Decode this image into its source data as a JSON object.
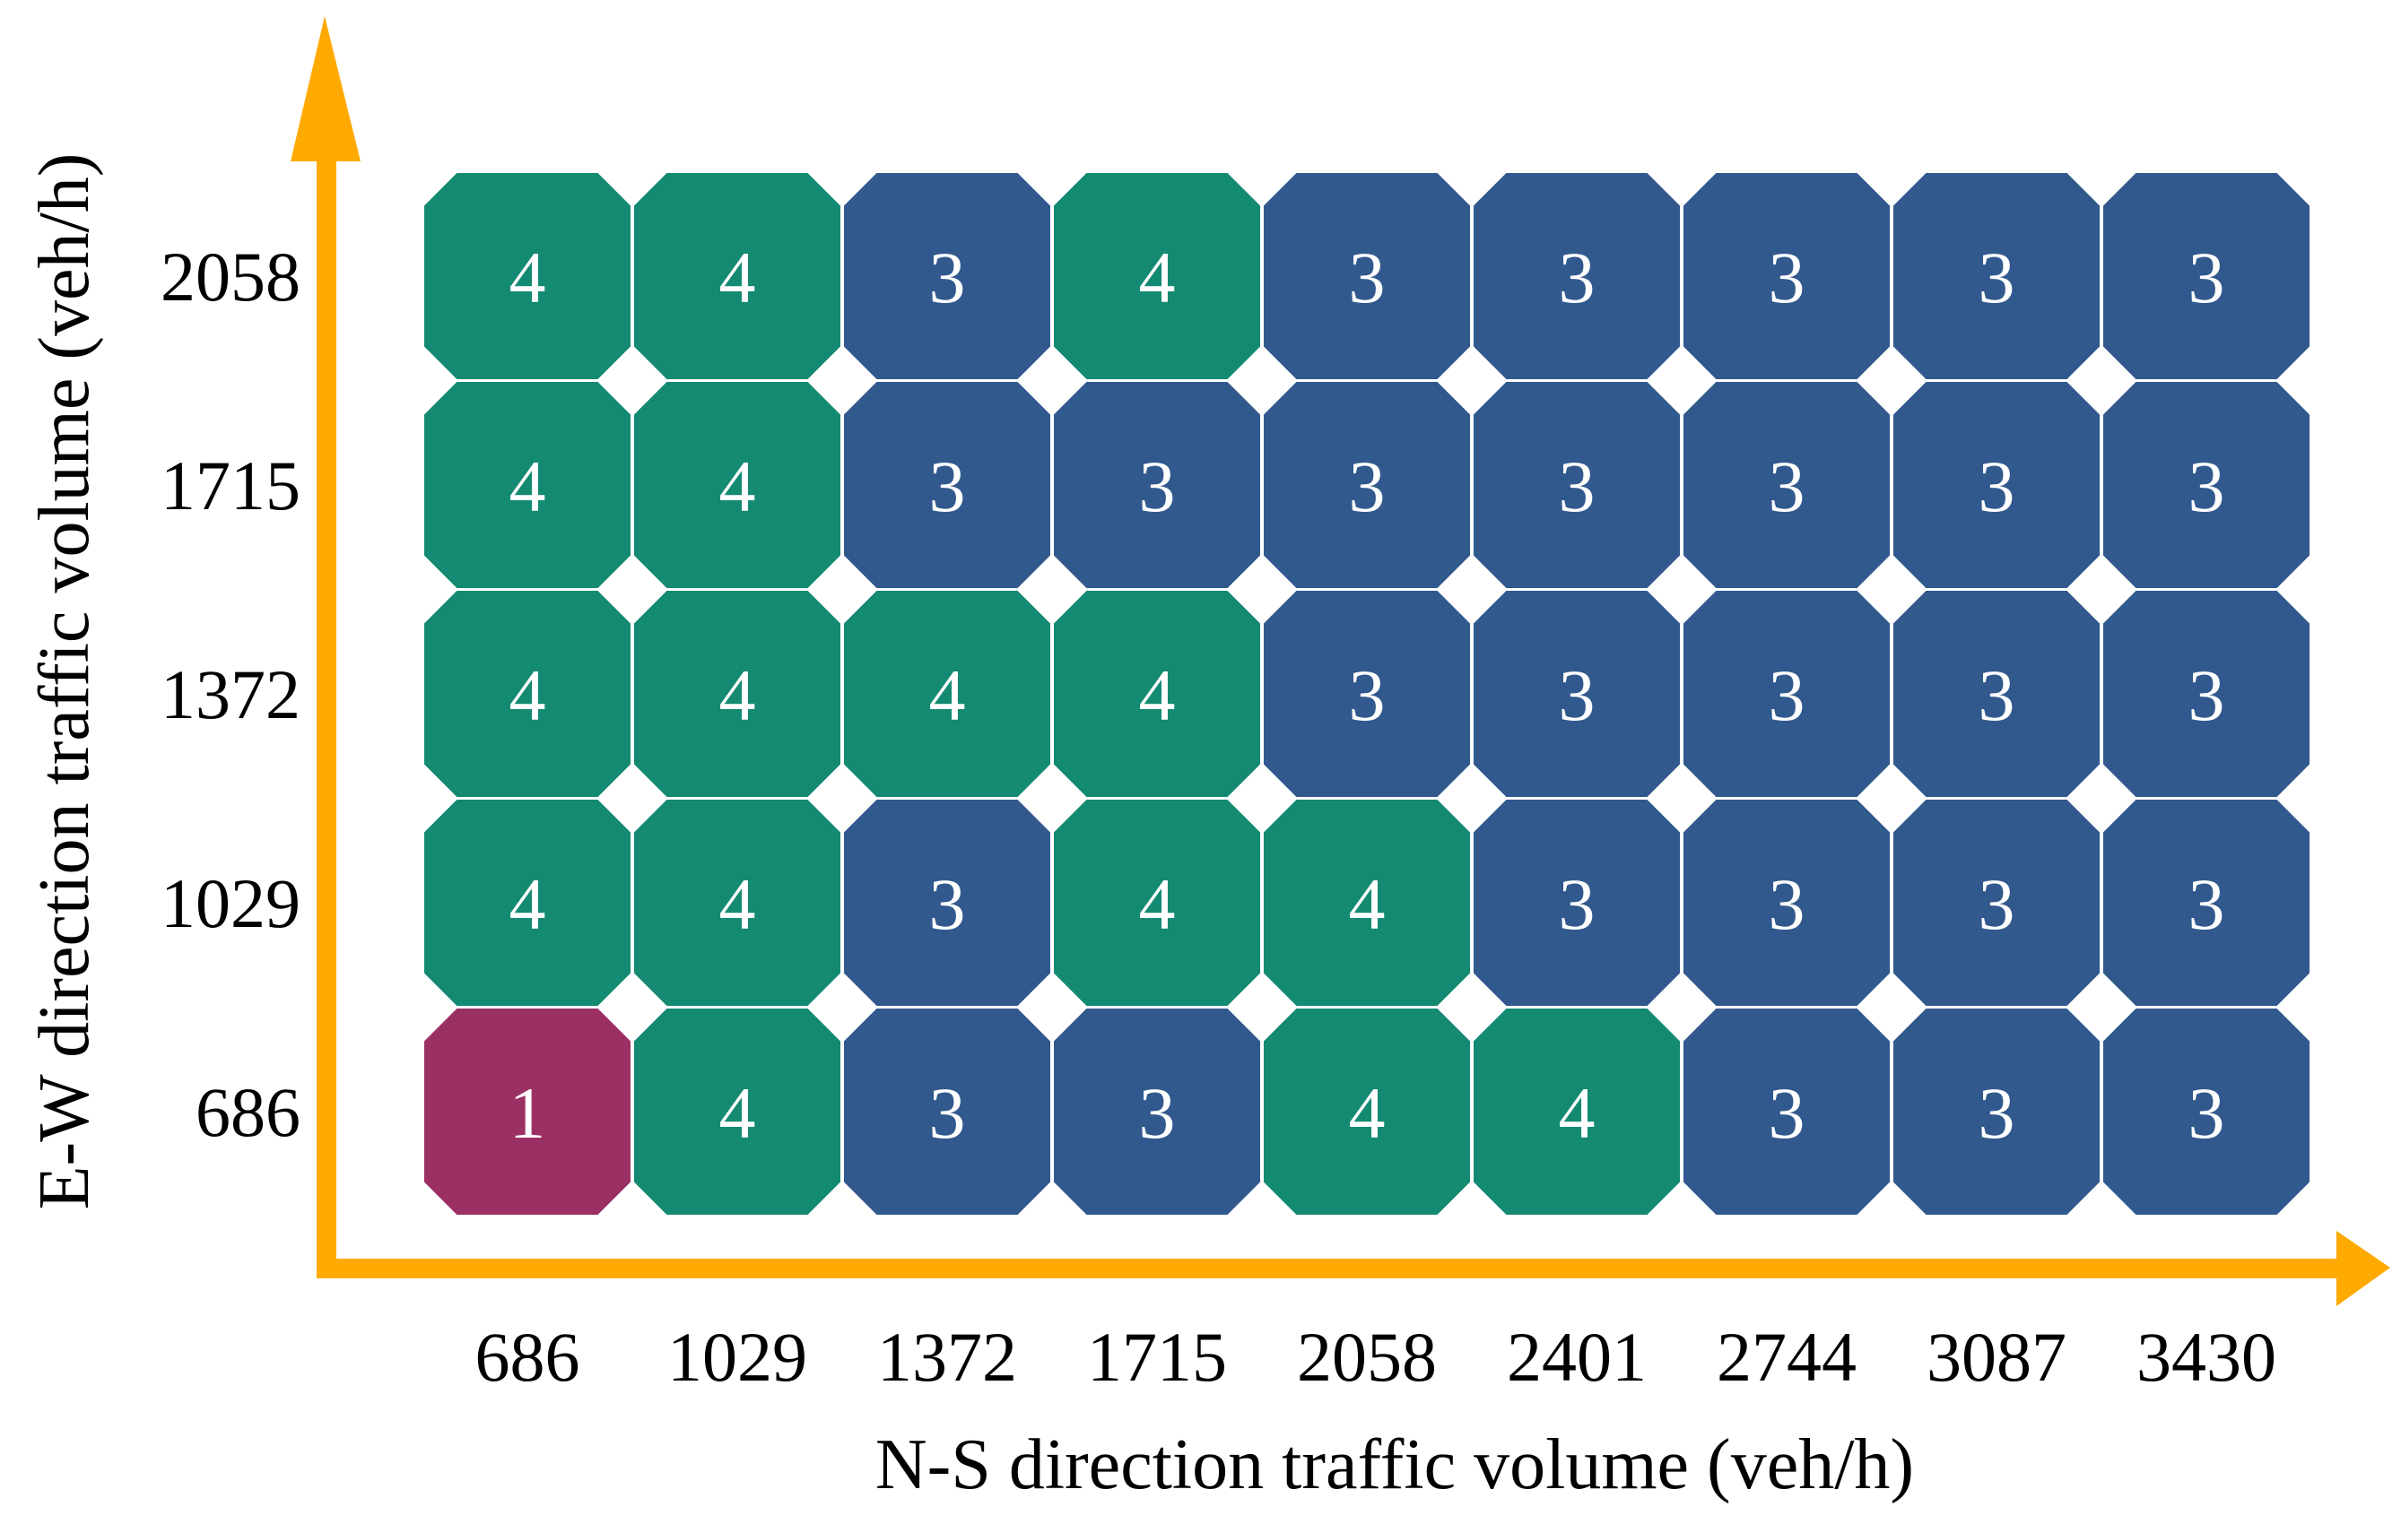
{
  "chart_data": {
    "type": "heatmap",
    "title": "",
    "xlabel": "N-S direction traffic volume (veh/h)",
    "ylabel": "E-W direction traffic volume (veh/h)",
    "x_categories": [
      "686",
      "1029",
      "1372",
      "1715",
      "2058",
      "2401",
      "2744",
      "3087",
      "3430"
    ],
    "y_categories": [
      "686",
      "1029",
      "1372",
      "1715",
      "2058"
    ],
    "values": [
      [
        1,
        4,
        3,
        3,
        4,
        4,
        3,
        3,
        3
      ],
      [
        4,
        4,
        3,
        4,
        4,
        3,
        3,
        3,
        3
      ],
      [
        4,
        4,
        4,
        4,
        3,
        3,
        3,
        3,
        3
      ],
      [
        4,
        4,
        3,
        3,
        3,
        3,
        3,
        3,
        3
      ],
      [
        4,
        4,
        3,
        4,
        3,
        3,
        3,
        3,
        3
      ]
    ],
    "value_colors": {
      "1": "#9b3064",
      "3": "#31598e",
      "4": "#148a73"
    },
    "axis_color": "#ffaa00",
    "grid": false,
    "legend": "none"
  }
}
